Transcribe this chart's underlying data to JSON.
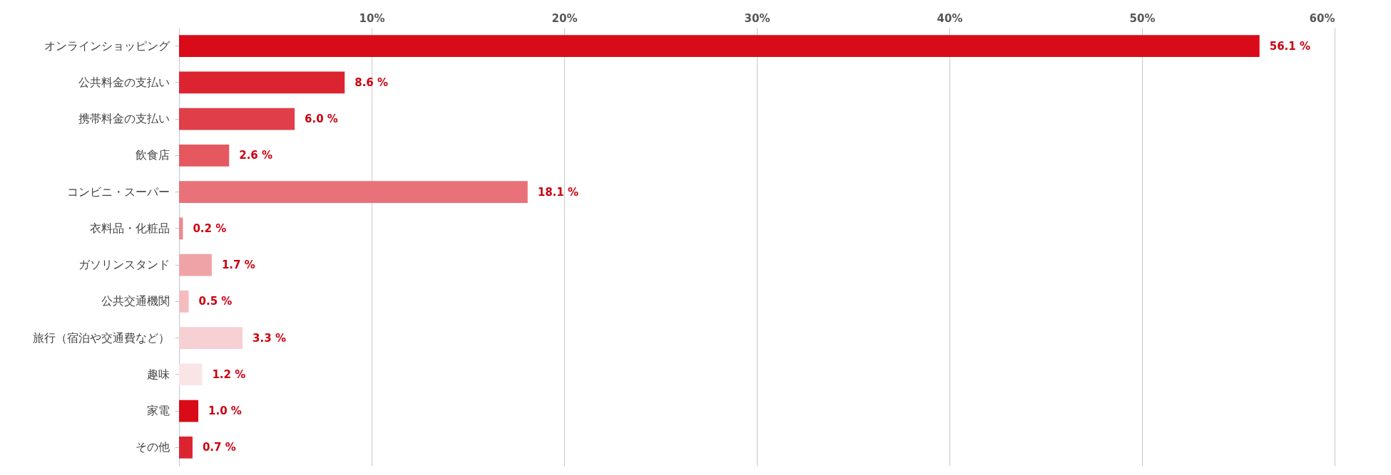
{
  "chart_data": {
    "type": "bar",
    "orientation": "horizontal",
    "categories": [
      "オンラインショッピング",
      "公共料金の支払い",
      "携帯料金の支払い",
      "飲食店",
      "コンビニ・スーパー",
      "衣料品・化粧品",
      "ガソリンスタンド",
      "公共交通機関",
      "旅行（宿泊や交通費など）",
      "趣味",
      "家電",
      "その他"
    ],
    "values": [
      56.1,
      8.6,
      6.0,
      2.6,
      18.1,
      0.2,
      1.7,
      0.5,
      3.3,
      1.2,
      1.0,
      0.7
    ],
    "value_labels": [
      "56.1 %",
      "8.6 %",
      "6.0 %",
      "2.6 %",
      "18.1 %",
      "0.2 %",
      "1.7 %",
      "0.5 %",
      "3.3 %",
      "1.2 %",
      "1.0 %",
      "0.7 %"
    ],
    "colors": [
      "#d90b18",
      "#dc2431",
      "#e03e48",
      "#e55860",
      "#e97178",
      "#ec8a8f",
      "#f0a3a7",
      "#f4bcbf",
      "#f7d0d3",
      "#fae5e6",
      "#d90b18",
      "#dc2431"
    ],
    "xlim": [
      0,
      60
    ],
    "xticks": [
      {
        "value": 0,
        "label": null
      },
      {
        "value": 10,
        "label": "10%"
      },
      {
        "value": 20,
        "label": "20%"
      },
      {
        "value": 30,
        "label": "30%"
      },
      {
        "value": 40,
        "label": "40%"
      },
      {
        "value": 50,
        "label": "50%"
      },
      {
        "value": 60,
        "label": "60%"
      }
    ],
    "grid": "x"
  }
}
